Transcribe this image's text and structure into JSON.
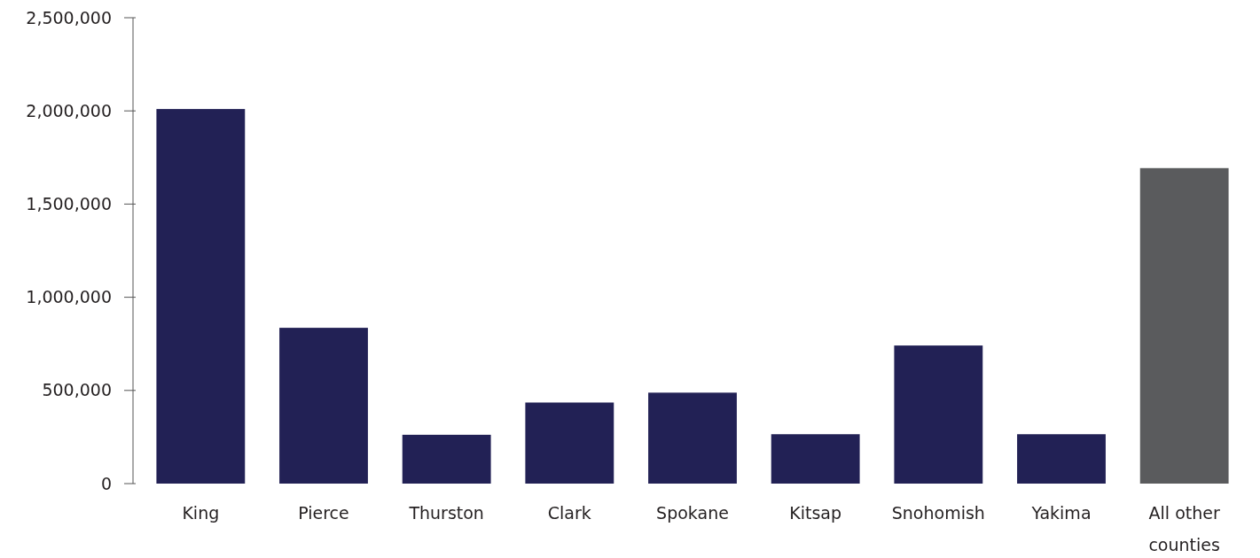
{
  "chart_data": {
    "type": "bar",
    "categories": [
      "King",
      "Pierce",
      "Thurston",
      "Clark",
      "Spokane",
      "Kitsap",
      "Snohomish",
      "Yakima",
      "All other counties"
    ],
    "values": [
      2010000,
      836000,
      262000,
      435000,
      488000,
      265000,
      741000,
      265000,
      1693000
    ],
    "colors": [
      "#222155",
      "#222155",
      "#222155",
      "#222155",
      "#222155",
      "#222155",
      "#222155",
      "#222155",
      "#5a5b5d"
    ],
    "ylim": [
      0,
      2500000
    ],
    "yticks": [
      {
        "value": 0,
        "label": "0"
      },
      {
        "value": 500000,
        "label": "500,000"
      },
      {
        "value": 1000000,
        "label": "1,000,000"
      },
      {
        "value": 1500000,
        "label": "1,500,000"
      },
      {
        "value": 2000000,
        "label": "2,000,000"
      },
      {
        "value": 2500000,
        "label": "2,500,000"
      }
    ],
    "grid": false
  }
}
